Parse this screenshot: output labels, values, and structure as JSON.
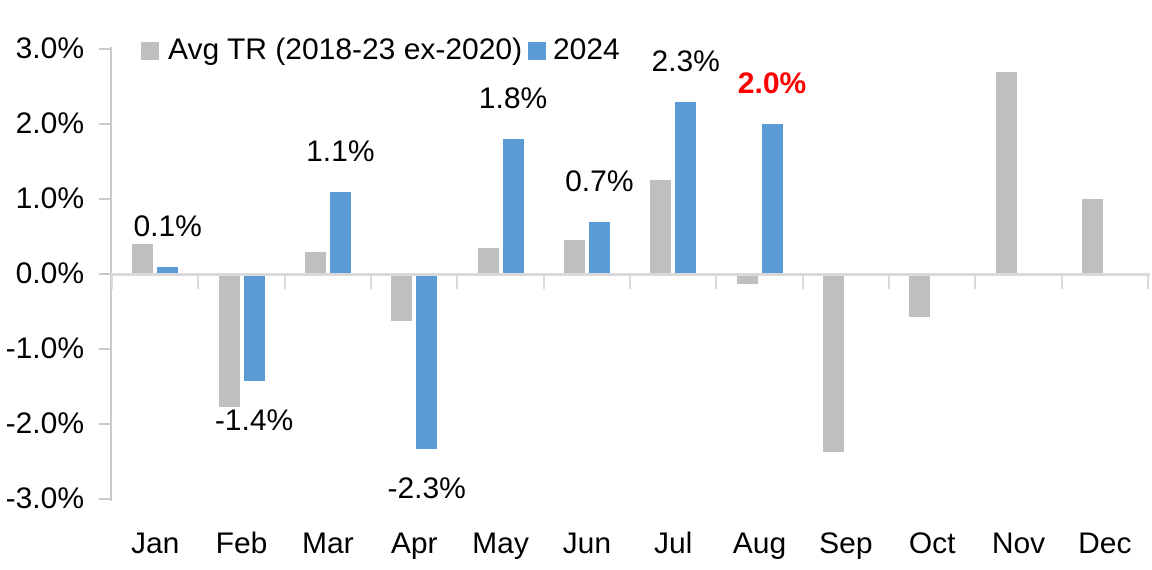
{
  "chart_data": {
    "type": "bar",
    "title": "",
    "categories": [
      "Jan",
      "Feb",
      "Mar",
      "Apr",
      "May",
      "Jun",
      "Jul",
      "Aug",
      "Sep",
      "Oct",
      "Nov",
      "Dec"
    ],
    "series": [
      {
        "name": "Avg TR (2018-23 ex-2020)",
        "color": "#BFBFBF",
        "values": [
          0.4,
          -1.75,
          0.3,
          -0.6,
          0.35,
          0.45,
          1.25,
          -0.1,
          -2.35,
          -0.55,
          2.7,
          1.0
        ]
      },
      {
        "name": "2024",
        "color": "#5B9BD5",
        "values": [
          0.1,
          -1.4,
          1.1,
          -2.3,
          1.8,
          0.7,
          2.3,
          2.0,
          null,
          null,
          null,
          null
        ],
        "data_labels": [
          {
            "text": "0.1%",
            "color": "#000000",
            "bold": false
          },
          {
            "text": "-1.4%",
            "color": "#000000",
            "bold": false
          },
          {
            "text": "1.1%",
            "color": "#000000",
            "bold": false
          },
          {
            "text": "-2.3%",
            "color": "#000000",
            "bold": false
          },
          {
            "text": "1.8%",
            "color": "#000000",
            "bold": false
          },
          {
            "text": "0.7%",
            "color": "#000000",
            "bold": false
          },
          {
            "text": "2.3%",
            "color": "#000000",
            "bold": false
          },
          {
            "text": "2.0%",
            "color": "#FF0000",
            "bold": true
          },
          null,
          null,
          null,
          null
        ]
      }
    ],
    "unit": "%",
    "ylim": [
      -3,
      3
    ],
    "yticks": [
      {
        "value": 3,
        "label": "3.0%"
      },
      {
        "value": 2,
        "label": "2.0%"
      },
      {
        "value": 1,
        "label": "1.0%"
      },
      {
        "value": 0,
        "label": "0.0%"
      },
      {
        "value": -1,
        "label": "-1.0%"
      },
      {
        "value": -2,
        "label": "-2.0%"
      },
      {
        "value": -3,
        "label": "-3.0%"
      }
    ],
    "grid": false,
    "legend_position": "top",
    "highlight_color": "#FF0000",
    "axis_color": "#c9c9c9"
  }
}
